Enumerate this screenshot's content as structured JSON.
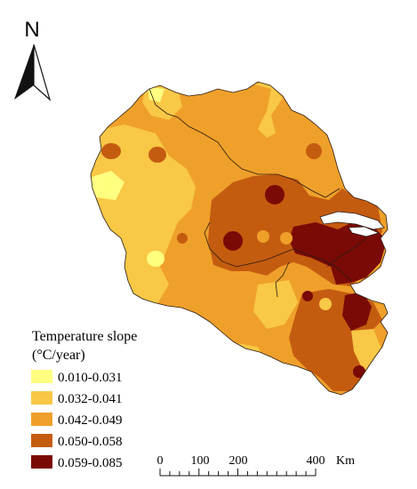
{
  "north_arrow": {
    "letter": "N"
  },
  "legend": {
    "title_line1": "Temperature slope",
    "title_line2": "(°C/year)",
    "items": [
      {
        "label": "0.010-0.031",
        "color": "#ffff80"
      },
      {
        "label": "0.032-0.041",
        "color": "#f8c846"
      },
      {
        "label": "0.042-0.049",
        "color": "#efa02a"
      },
      {
        "label": "0.050-0.058",
        "color": "#c45c10"
      },
      {
        "label": "0.059-0.085",
        "color": "#7a0a06"
      }
    ]
  },
  "scale_bar": {
    "ticks": [
      "0",
      "100",
      "200",
      "400"
    ],
    "unit": "Km"
  }
}
